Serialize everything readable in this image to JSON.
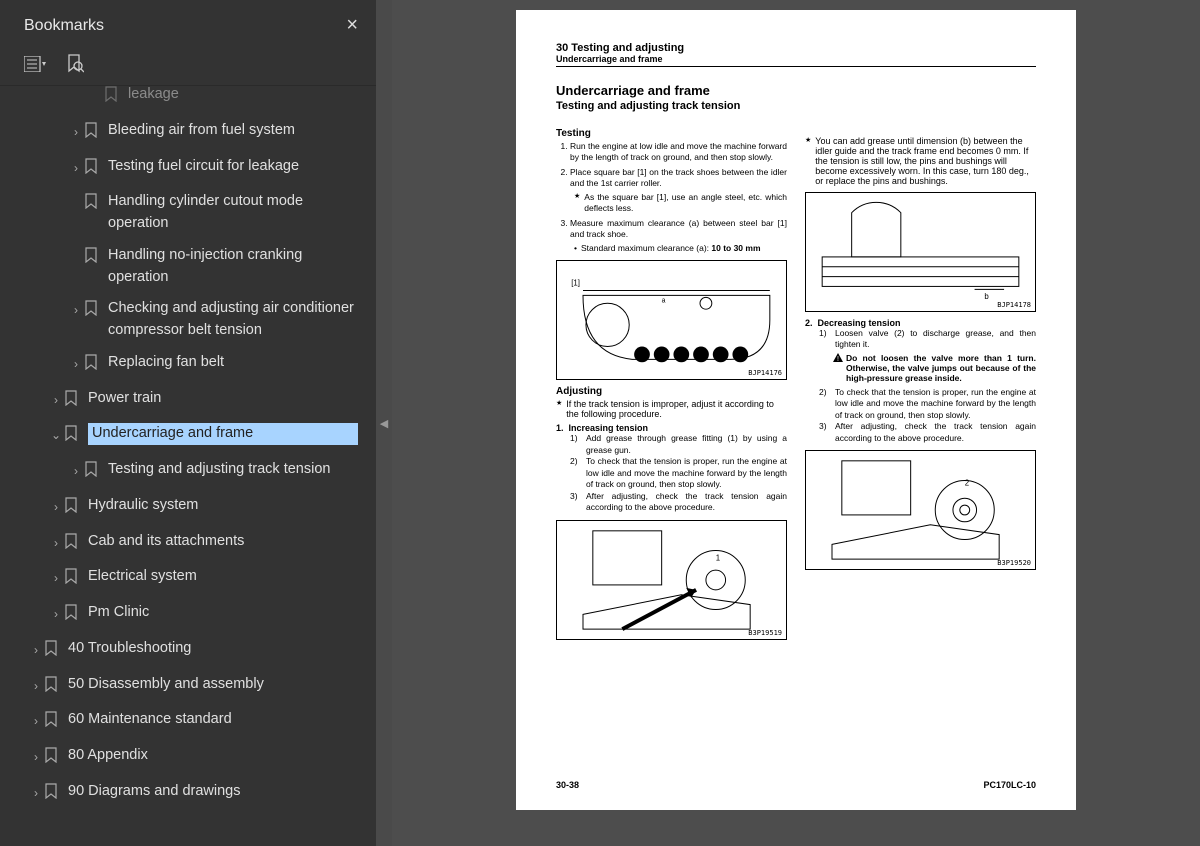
{
  "sidebar": {
    "title": "Bookmarks",
    "items": [
      {
        "label": "leakage",
        "indent": 3,
        "chevron": "",
        "truncated": true
      },
      {
        "label": "Bleeding air from fuel system",
        "indent": 2,
        "chevron": "›"
      },
      {
        "label": "Testing fuel circuit for leakage",
        "indent": 2,
        "chevron": "›"
      },
      {
        "label": "Handling cylinder cutout mode operation",
        "indent": 2,
        "chevron": ""
      },
      {
        "label": "Handling no-injection cranking operation",
        "indent": 2,
        "chevron": ""
      },
      {
        "label": "Checking and adjusting air conditioner compressor belt tension",
        "indent": 2,
        "chevron": "›"
      },
      {
        "label": "Replacing fan belt",
        "indent": 2,
        "chevron": "›"
      },
      {
        "label": "Power train",
        "indent": 1,
        "chevron": "›"
      },
      {
        "label": "Undercarriage and frame",
        "indent": 1,
        "chevron": "⌄",
        "selected": true
      },
      {
        "label": "Testing and adjusting track tension",
        "indent": 2,
        "chevron": "›"
      },
      {
        "label": "Hydraulic system",
        "indent": 1,
        "chevron": "›"
      },
      {
        "label": "Cab and its attachments",
        "indent": 1,
        "chevron": "›"
      },
      {
        "label": "Electrical system",
        "indent": 1,
        "chevron": "›"
      },
      {
        "label": "Pm Clinic",
        "indent": 1,
        "chevron": "›"
      },
      {
        "label": "40 Troubleshooting",
        "indent": 0,
        "chevron": "›"
      },
      {
        "label": "50 Disassembly and assembly",
        "indent": 0,
        "chevron": "›"
      },
      {
        "label": "60 Maintenance standard",
        "indent": 0,
        "chevron": "›"
      },
      {
        "label": "80 Appendix",
        "indent": 0,
        "chevron": "›"
      },
      {
        "label": "90 Diagrams and drawings",
        "indent": 0,
        "chevron": "›"
      }
    ]
  },
  "doc": {
    "header_line1": "30 Testing and adjusting",
    "header_line2": "Undercarriage and frame",
    "title": "Undercarriage and frame",
    "subtitle": "Testing and adjusting track tension",
    "testing_h": "Testing",
    "testing": [
      "Run the engine at low idle and move the machine forward by the length of track on ground, and then stop slowly.",
      "Place square bar [1] on the track shoes between the idler and the 1st carrier roller."
    ],
    "testing_star": "As the square bar [1], use an angle steel, etc. which deflects less.",
    "testing_3": "Measure maximum clearance (a) between steel bar [1] and track shoe.",
    "testing_bullet": "Standard maximum clearance (a): ",
    "testing_bold": "10 to 30 mm",
    "fig1": "BJP14176",
    "adjusting_h": "Adjusting",
    "adjusting_star": "If the track tension is improper, adjust it according to the following procedure.",
    "inc_h": "Increasing tension",
    "inc": [
      "Add grease through grease fitting (1) by using a grease gun.",
      "To check that the tension is proper, run the engine at low idle and move the machine forward by the length of track on ground, then stop slowly.",
      "After adjusting, check the track tension again according to the above procedure."
    ],
    "fig2": "B3P19519",
    "right_star": "You can add grease until dimension (b) between the idler guide and the track frame end becomes 0 mm. If the tension is still low, the pins and bushings will become excessively worn. In this case, turn 180 deg., or replace the pins and bushings.",
    "fig3": "BJP14178",
    "dec_h": "Decreasing tension",
    "dec_1": "Loosen valve (2) to discharge grease, and then tighten it.",
    "dec_warn": "Do not loosen the valve more than 1 turn. Otherwise, the valve jumps out because of the high-pressure grease inside.",
    "dec_2": "To check that the tension is proper, run the engine at low idle and move the machine forward by the length of track on ground, then stop slowly.",
    "dec_3": "After adjusting, check the track tension again according to the above procedure.",
    "fig4": "B3P19520",
    "footer_left": "30-38",
    "footer_right": "PC170LC-10"
  }
}
